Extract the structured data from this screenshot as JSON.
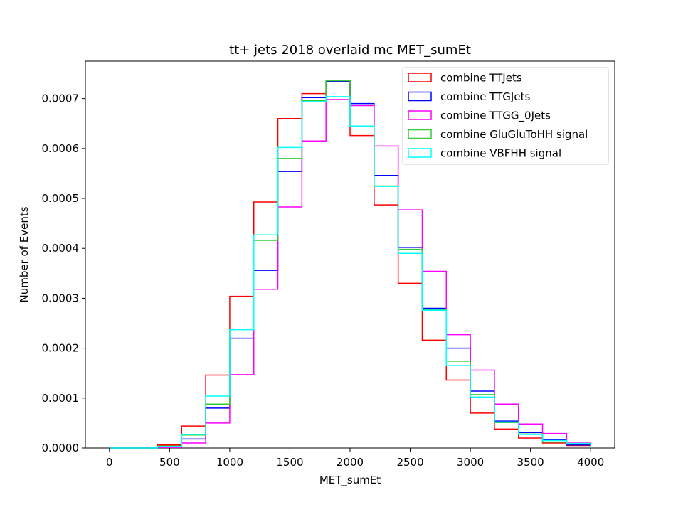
{
  "chart_data": {
    "type": "histogram-step",
    "title": "tt+ jets 2018 overlaid mc MET_sumEt",
    "xlabel": "MET_sumEt",
    "ylabel": "Number of Events",
    "xlim": [
      -200,
      4200
    ],
    "ylim": [
      0,
      0.000775
    ],
    "x_ticks": [
      0,
      500,
      1000,
      1500,
      2000,
      2500,
      3000,
      3500,
      4000
    ],
    "y_ticks": [
      0,
      0.0001,
      0.0002,
      0.0003,
      0.0004,
      0.0005,
      0.0006,
      0.0007
    ],
    "y_tick_labels": [
      "0.0000",
      "0.0001",
      "0.0002",
      "0.0003",
      "0.0004",
      "0.0005",
      "0.0006",
      "0.0007"
    ],
    "bin_edges": [
      0,
      200,
      400,
      600,
      800,
      1000,
      1200,
      1400,
      1600,
      1800,
      2000,
      2200,
      2400,
      2600,
      2800,
      3000,
      3200,
      3400,
      3600,
      3800,
      4000
    ],
    "legend_position": "top-right",
    "series": [
      {
        "name": "combine TTJets",
        "color": "#ff0000",
        "values": [
          0.0,
          0.0,
          6e-06,
          4.4e-05,
          0.000146,
          0.000304,
          0.000493,
          0.00066,
          0.00071,
          0.000735,
          0.000626,
          0.000487,
          0.00033,
          0.000216,
          0.000136,
          7e-05,
          3.8e-05,
          2e-05,
          1e-05,
          5e-06
        ]
      },
      {
        "name": "combine TTGJets",
        "color": "#0000ff",
        "values": [
          0.0,
          0.0,
          2e-06,
          1.8e-05,
          8e-05,
          0.00022,
          0.000356,
          0.000554,
          0.000702,
          0.000735,
          0.00069,
          0.000546,
          0.000402,
          0.00028,
          0.0002,
          0.000114,
          5.4e-05,
          3.1e-05,
          1.6e-05,
          6e-06
        ]
      },
      {
        "name": "combine TTGG_0Jets",
        "color": "#ff00ff",
        "values": [
          0.0,
          0.0,
          1e-06,
          1e-05,
          5e-05,
          0.000147,
          0.000318,
          0.000483,
          0.000615,
          0.000698,
          0.000686,
          0.000605,
          0.000477,
          0.000354,
          0.000227,
          0.000156,
          8.8e-05,
          4.8e-05,
          2.9e-05,
          1e-05
        ]
      },
      {
        "name": "combine GluGluToHH signal",
        "color": "#33cc33",
        "values": [
          0.0,
          0.0,
          4e-06,
          2.6e-05,
          8.8e-05,
          0.000238,
          0.000416,
          0.00058,
          0.000696,
          0.000736,
          0.000645,
          0.000525,
          0.000398,
          0.000278,
          0.000174,
          0.000107,
          5.1e-05,
          2.8e-05,
          1.2e-05,
          8e-06
        ]
      },
      {
        "name": "combine VBFHH signal",
        "color": "#00ffff",
        "values": [
          0.0,
          0.0,
          3e-06,
          2.7e-05,
          0.000104,
          0.000237,
          0.000427,
          0.000602,
          0.000694,
          0.000704,
          0.000645,
          0.000524,
          0.00039,
          0.000276,
          0.000165,
          0.000102,
          5.2e-05,
          2.7e-05,
          1.5e-05,
          9e-06
        ]
      }
    ]
  }
}
